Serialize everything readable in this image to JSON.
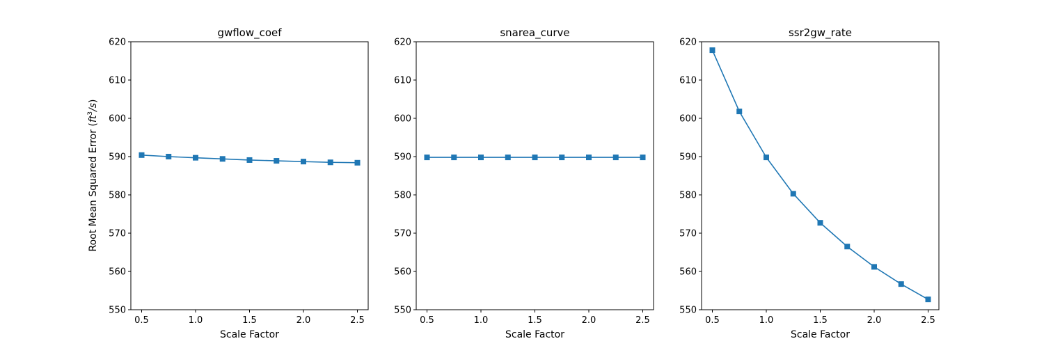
{
  "figure": {
    "xlabel": "Scale Factor",
    "ylabel": "Root Mean Squared Error",
    "ylabel_unit_base": "ft",
    "ylabel_unit_exp": "3",
    "ylabel_unit_tail": "/s",
    "line_color": "#1f77b4",
    "marker": "square"
  },
  "chart_data": [
    {
      "type": "line",
      "title": "gwflow_coef",
      "xlabel": "Scale Factor",
      "ylabel": "Root Mean Squared Error (ft³/s)",
      "x": [
        0.5,
        0.75,
        1.0,
        1.25,
        1.5,
        1.75,
        2.0,
        2.25,
        2.5
      ],
      "y": [
        590.4,
        590.0,
        589.7,
        589.4,
        589.1,
        588.9,
        588.7,
        588.5,
        588.4
      ],
      "xticks": [
        "0.5",
        "1.0",
        "1.5",
        "2.0",
        "2.5"
      ],
      "yticks": [
        "550",
        "560",
        "570",
        "580",
        "590",
        "600",
        "610",
        "620"
      ],
      "xlim": [
        0.4,
        2.6
      ],
      "ylim": [
        550,
        620
      ],
      "grid": false,
      "legend": "none"
    },
    {
      "type": "line",
      "title": "snarea_curve",
      "xlabel": "Scale Factor",
      "ylabel": "",
      "x": [
        0.5,
        0.75,
        1.0,
        1.25,
        1.5,
        1.75,
        2.0,
        2.25,
        2.5
      ],
      "y": [
        589.8,
        589.8,
        589.8,
        589.8,
        589.8,
        589.8,
        589.8,
        589.8,
        589.8
      ],
      "xticks": [
        "0.5",
        "1.0",
        "1.5",
        "2.0",
        "2.5"
      ],
      "yticks": [
        "550",
        "560",
        "570",
        "580",
        "590",
        "600",
        "610",
        "620"
      ],
      "xlim": [
        0.4,
        2.6
      ],
      "ylim": [
        550,
        620
      ],
      "grid": false,
      "legend": "none"
    },
    {
      "type": "line",
      "title": "ssr2gw_rate",
      "xlabel": "Scale Factor",
      "ylabel": "",
      "x": [
        0.5,
        0.75,
        1.0,
        1.25,
        1.5,
        1.75,
        2.0,
        2.25,
        2.5
      ],
      "y": [
        617.8,
        601.8,
        589.8,
        580.3,
        572.7,
        566.5,
        561.2,
        556.7,
        552.7
      ],
      "xticks": [
        "0.5",
        "1.0",
        "1.5",
        "2.0",
        "2.5"
      ],
      "yticks": [
        "550",
        "560",
        "570",
        "580",
        "590",
        "600",
        "610",
        "620"
      ],
      "xlim": [
        0.4,
        2.6
      ],
      "ylim": [
        550,
        620
      ],
      "grid": false,
      "legend": "none"
    }
  ]
}
